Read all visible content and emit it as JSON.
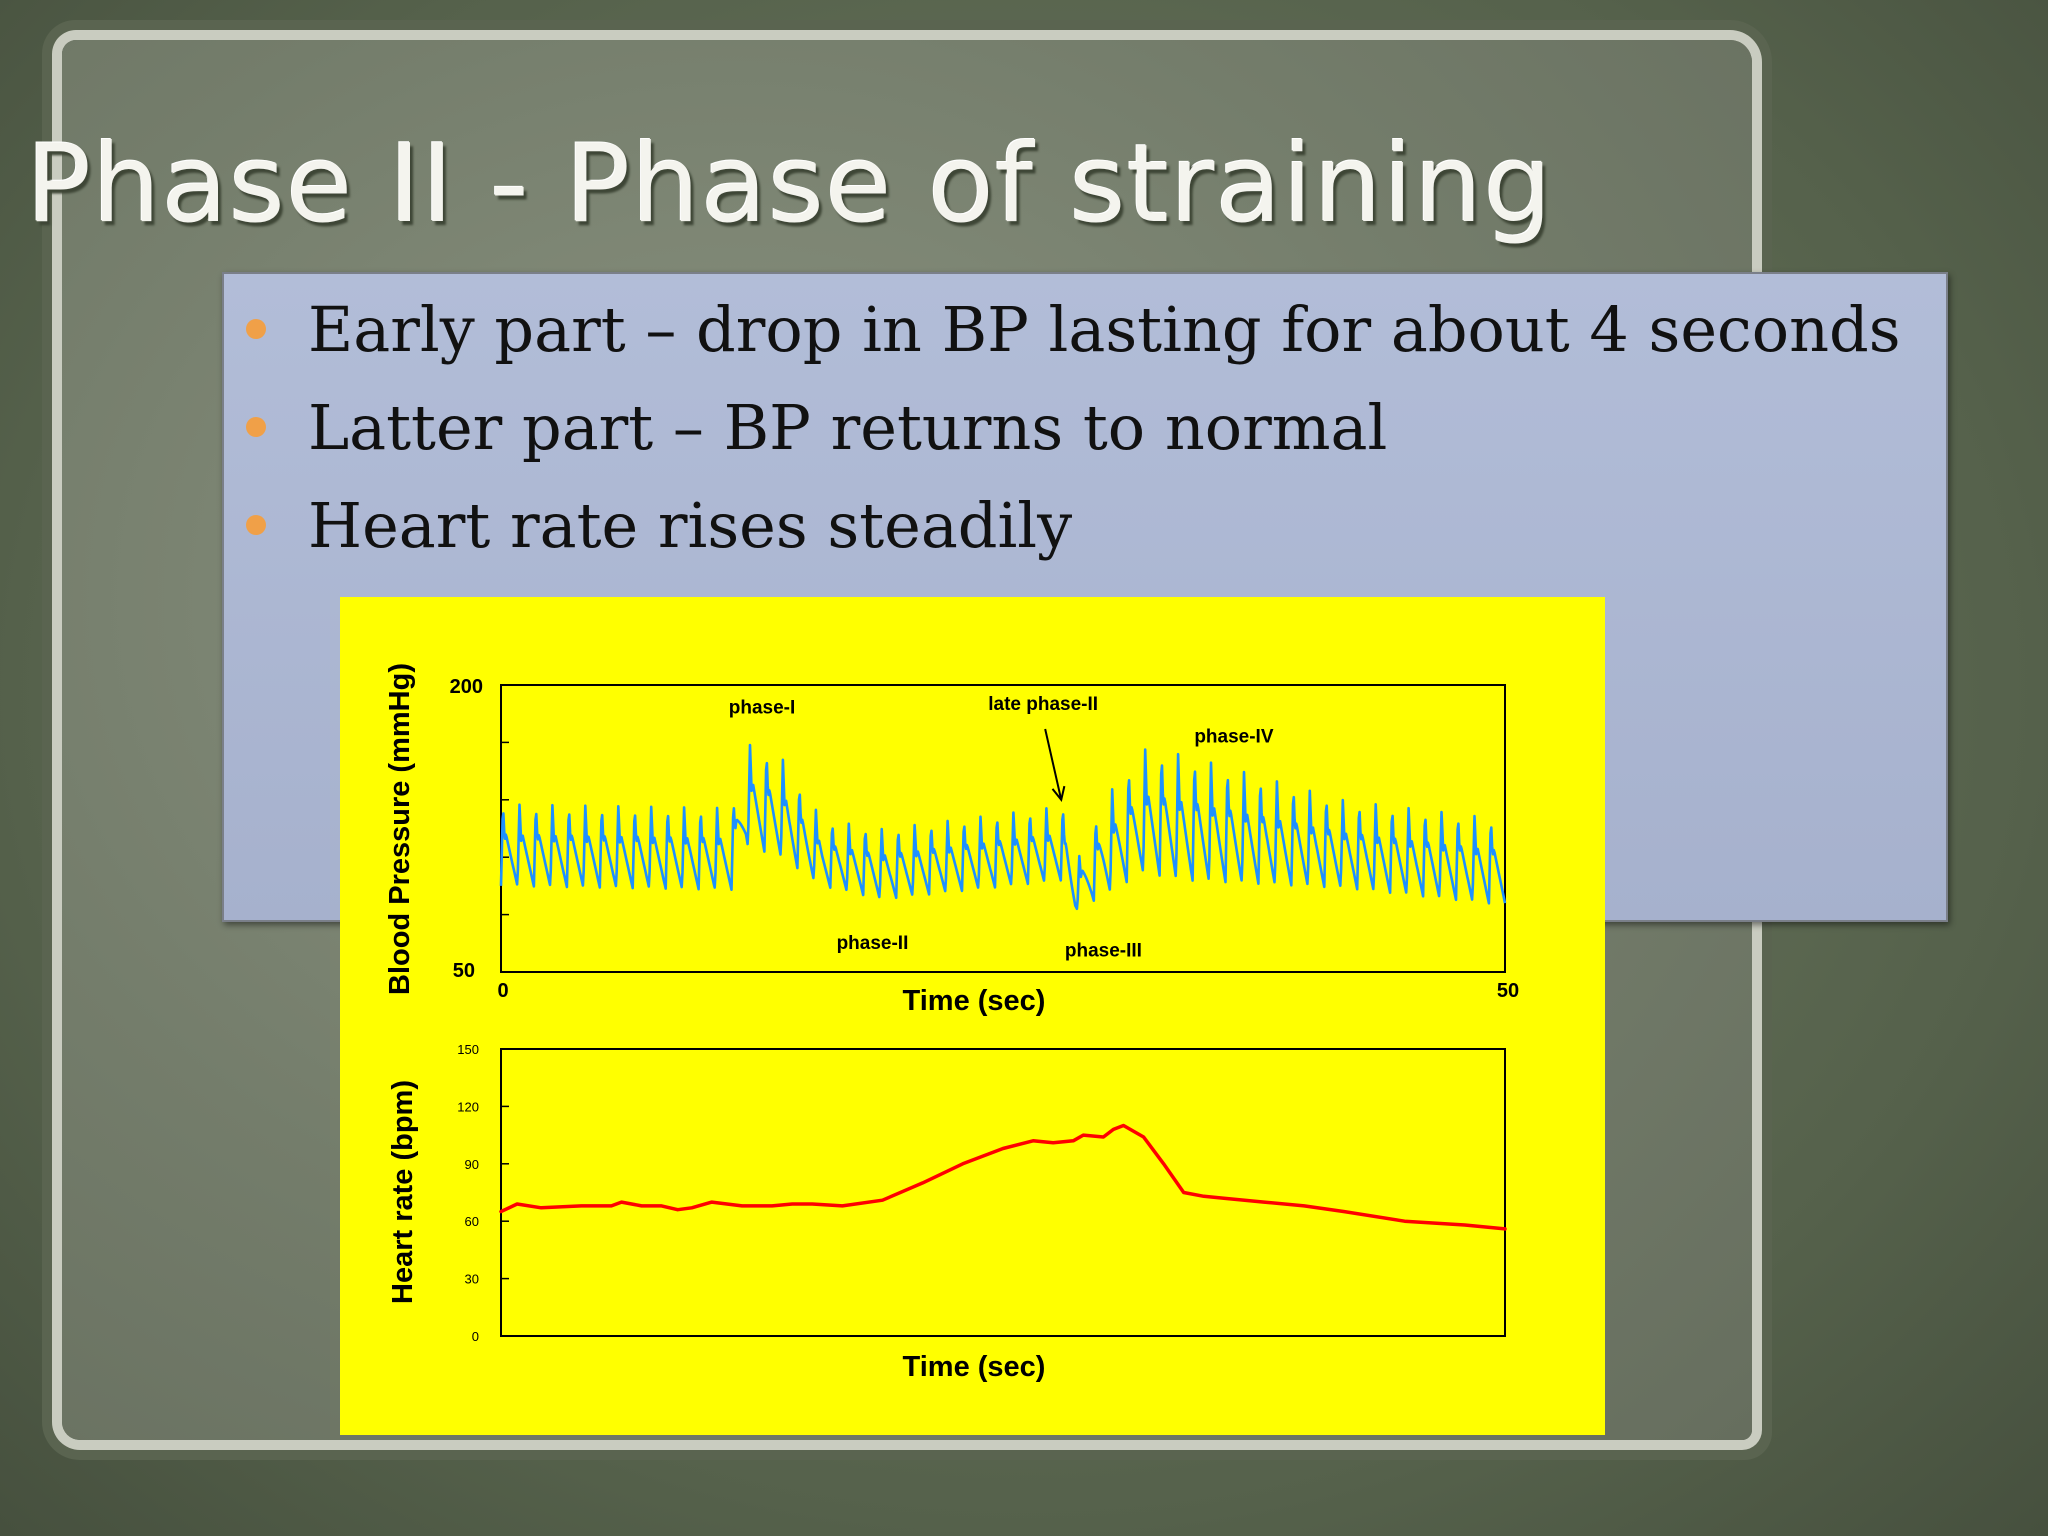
{
  "slide": {
    "title": "Phase II - Phase of straining",
    "bullets": [
      "Early part – drop in BP lasting for about 4 seconds",
      "Latter part – BP returns to normal",
      "Heart rate rises steadily"
    ]
  },
  "colors": {
    "figure_background": "#ffff00",
    "bp_trace": "#1e90ff",
    "hr_trace": "#ff0000",
    "bullet": "#f0a048"
  },
  "chart_data": [
    {
      "type": "line",
      "title": "",
      "xlabel": "Time (sec)",
      "ylabel": "Blood Pressure (mmHg)",
      "xlim": [
        0,
        50
      ],
      "ylim": [
        50,
        200
      ],
      "x_tick_labels": [
        "0",
        "50"
      ],
      "y_tick_labels": [
        "200",
        "50"
      ],
      "grid": false,
      "series": [
        {
          "color": "#1e90ff",
          "beat_interval_sec": 0.82,
          "envelope": {
            "x": [
              0,
              11.5,
              12.2,
              14,
              16,
              19,
              28,
              28.6,
              30,
              32,
              34,
              38,
              42,
              50
            ],
            "systolic": [
              138,
              136,
              170,
              162,
              130,
              125,
              137,
              106,
              140,
              167,
              164,
              152,
              140,
              130
            ],
            "diastolic": [
              95,
              93,
              116,
              110,
              95,
              88,
              98,
              82,
              90,
              102,
              98,
              96,
              94,
              85
            ]
          }
        }
      ],
      "annotations": [
        {
          "text": "phase-I",
          "x": 13,
          "y": 185
        },
        {
          "text": "late phase-II",
          "x": 27,
          "y": 187
        },
        {
          "text": "phase-IV",
          "x": 36.5,
          "y": 170
        },
        {
          "text": "phase-II",
          "x": 18.5,
          "y": 62
        },
        {
          "text": "phase-III",
          "x": 30,
          "y": 58
        }
      ],
      "arrow": {
        "from": [
          27.1,
          177
        ],
        "to": [
          27.9,
          140
        ]
      }
    },
    {
      "type": "line",
      "title": "",
      "xlabel": "Time (sec)",
      "ylabel": "Heart rate (bpm)",
      "xlim": [
        0,
        50
      ],
      "ylim": [
        0,
        150
      ],
      "y_ticks": [
        0,
        30,
        60,
        90,
        120,
        150
      ],
      "grid": false,
      "series": [
        {
          "color": "#ff0000",
          "x": [
            0,
            0.8,
            2,
            4,
            5.5,
            6,
            7,
            8,
            8.8,
            9.5,
            10.5,
            12,
            13.5,
            14.5,
            15.5,
            17,
            19,
            21,
            23,
            25,
            26.5,
            27.5,
            28.5,
            29,
            30,
            30.5,
            31,
            32,
            33,
            34,
            35,
            36,
            38,
            40,
            42,
            45,
            48,
            50
          ],
          "y": [
            65,
            69,
            67,
            68,
            68,
            70,
            68,
            68,
            66,
            67,
            70,
            68,
            68,
            69,
            69,
            68,
            71,
            80,
            90,
            98,
            102,
            101,
            102,
            105,
            104,
            108,
            110,
            104,
            90,
            75,
            73,
            72,
            70,
            68,
            65,
            60,
            58,
            56
          ]
        }
      ]
    }
  ]
}
